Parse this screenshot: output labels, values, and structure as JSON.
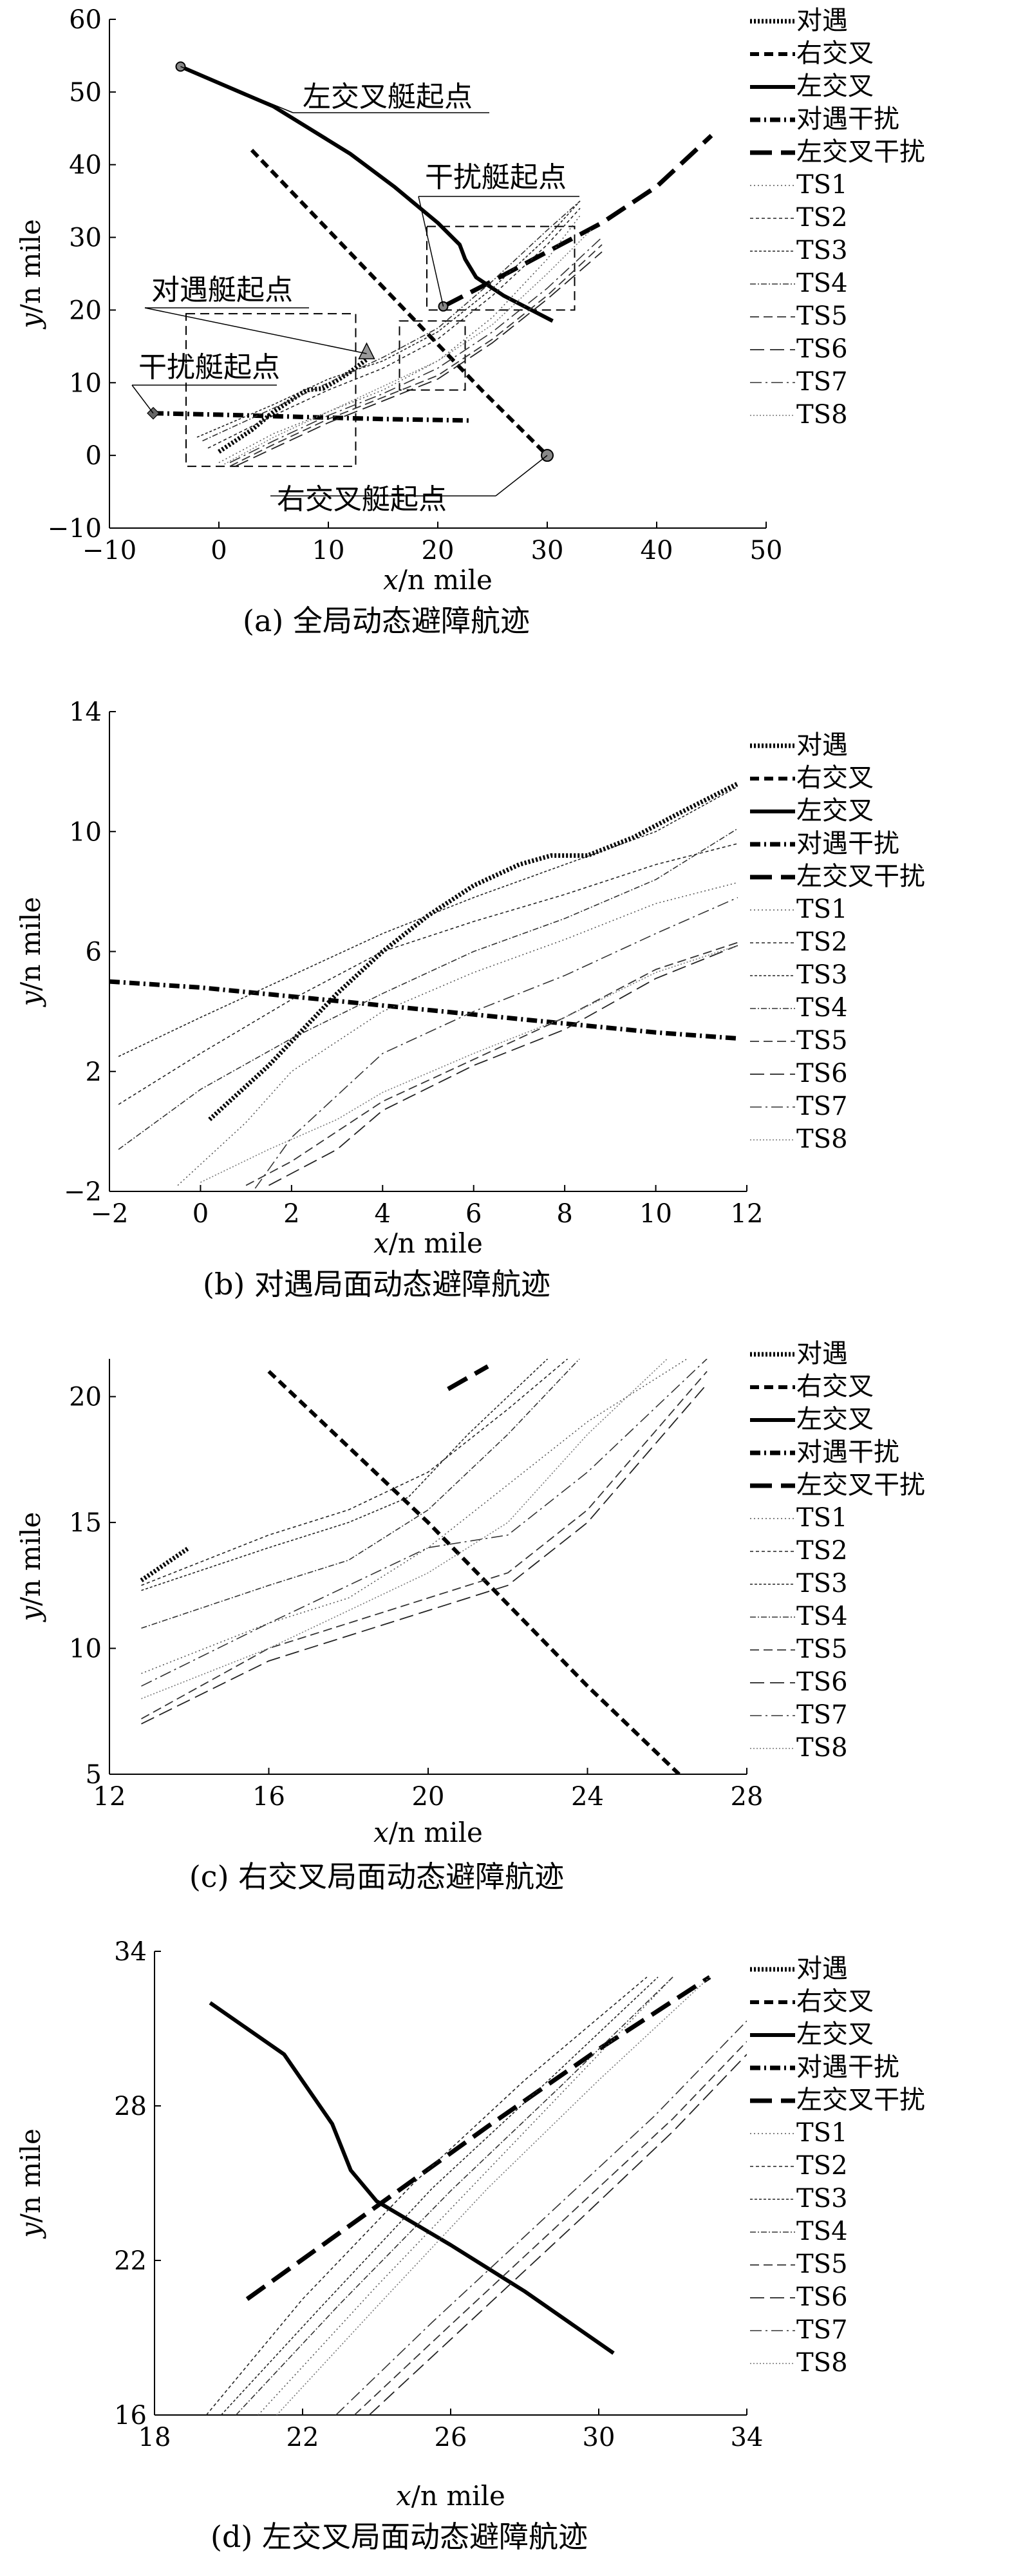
{
  "legend": [
    "对遇",
    "右交叉",
    "左交叉",
    "对遇干扰",
    "左交叉干扰",
    "TS1",
    "TS2",
    "TS3",
    "TS4",
    "TS5",
    "TS6",
    "TS7",
    "TS8"
  ],
  "chart_data": [
    {
      "type": "line",
      "title": "",
      "caption": "(a) 全局动态避障航迹",
      "xlabel_var": "x",
      "xlabel_unit": "/n mile",
      "ylabel_var": "y",
      "ylabel_unit": "/n mile",
      "xlim": [
        -10,
        50
      ],
      "ylim": [
        -10,
        60
      ],
      "xticks": [
        -10,
        0,
        10,
        20,
        30,
        40,
        50
      ],
      "yticks": [
        -10,
        0,
        10,
        20,
        30,
        40,
        50,
        60
      ],
      "series": [
        {
          "name": "对遇",
          "x": [
            0,
            3,
            5,
            7,
            8,
            9.5,
            11,
            12,
            13.5
          ],
          "y": [
            0.5,
            3.5,
            6,
            8,
            9,
            9.2,
            10.5,
            11.5,
            13.2
          ]
        },
        {
          "name": "右交叉",
          "x": [
            3,
            10,
            17,
            24,
            30
          ],
          "y": [
            42,
            31,
            20,
            9,
            0
          ]
        },
        {
          "name": "左交叉",
          "x": [
            -3.5,
            5,
            12,
            16,
            20,
            22,
            22.5,
            23.5,
            26,
            30.5
          ],
          "y": [
            53.5,
            48,
            41.5,
            37,
            32,
            29,
            27,
            24.5,
            22,
            18.5
          ]
        },
        {
          "name": "对遇干扰",
          "x": [
            -6,
            0,
            5,
            10,
            15,
            19,
            23
          ],
          "y": [
            5.8,
            5.6,
            5.4,
            5.2,
            5.0,
            4.9,
            4.8
          ]
        },
        {
          "name": "左交叉干扰",
          "x": [
            20.5,
            25,
            30,
            35,
            40,
            45
          ],
          "y": [
            20.5,
            24,
            28,
            32,
            37,
            44
          ]
        },
        {
          "name": "TS1",
          "x": [
            0,
            5,
            10,
            15,
            20,
            25,
            30,
            33
          ],
          "y": [
            -1,
            3,
            6,
            9,
            13,
            19,
            27,
            33
          ]
        },
        {
          "name": "TS2",
          "x": [
            -1,
            5,
            10,
            15,
            20,
            25,
            30,
            33
          ],
          "y": [
            1,
            5.5,
            9,
            12,
            16,
            22,
            29,
            34
          ]
        },
        {
          "name": "TS3",
          "x": [
            -2,
            5,
            10,
            15,
            20,
            25,
            30,
            33
          ],
          "y": [
            2.5,
            7,
            10.5,
            13,
            17,
            23,
            30,
            35
          ]
        },
        {
          "name": "TS4",
          "x": [
            -1.5,
            5,
            10,
            15,
            20,
            25,
            30,
            33
          ],
          "y": [
            2,
            6.5,
            10,
            13.5,
            17.5,
            24,
            31,
            35
          ]
        },
        {
          "name": "TS5",
          "x": [
            1,
            5,
            10,
            15,
            20,
            25,
            30,
            35
          ],
          "y": [
            -1.5,
            1.5,
            5,
            8,
            11,
            16,
            22,
            29
          ]
        },
        {
          "name": "TS6",
          "x": [
            1.5,
            5,
            10,
            15,
            20,
            25,
            30,
            35
          ],
          "y": [
            -1.5,
            1,
            4.5,
            7.5,
            10.5,
            15.5,
            21.5,
            28
          ]
        },
        {
          "name": "TS7",
          "x": [
            1,
            5,
            10,
            15,
            20,
            25,
            30,
            35
          ],
          "y": [
            -1,
            2,
            5.5,
            8.5,
            12,
            17,
            23,
            30
          ]
        },
        {
          "name": "TS8",
          "x": [
            0.5,
            5,
            10,
            15,
            20,
            25,
            30,
            34
          ],
          "y": [
            -1.2,
            2.5,
            6,
            9.5,
            13,
            18,
            25,
            31
          ]
        }
      ],
      "annotations": [
        {
          "text": "左交叉艇起点",
          "x": -3.5,
          "y": 53.5
        },
        {
          "text": "干扰艇起点",
          "x": 20.5,
          "y": 20.5
        },
        {
          "text": "对遇艇起点",
          "x": 13.5,
          "y": 14
        },
        {
          "text": "干扰艇起点",
          "x": -6,
          "y": 5.8
        },
        {
          "text": "右交叉艇起点",
          "x": 30,
          "y": 0
        }
      ],
      "regions": [
        {
          "x": [
            -3,
            12.5
          ],
          "y": [
            -1.5,
            19.5
          ]
        },
        {
          "x": [
            16.5,
            22.5
          ],
          "y": [
            9,
            18.5
          ]
        },
        {
          "x": [
            19,
            32.5
          ],
          "y": [
            20,
            31.5
          ]
        }
      ]
    },
    {
      "type": "line",
      "title": "",
      "caption": "(b) 对遇局面动态避障航迹",
      "xlabel_var": "x",
      "xlabel_unit": "/n mile",
      "ylabel_var": "y",
      "ylabel_unit": "/n mile",
      "xlim": [
        -2,
        12
      ],
      "ylim": [
        -2,
        14
      ],
      "xticks": [
        -2,
        0,
        2,
        4,
        6,
        8,
        10,
        12
      ],
      "yticks": [
        -2,
        2,
        6,
        10,
        14
      ],
      "series": [
        {
          "name": "对遇",
          "x": [
            0.2,
            1.5,
            3,
            4,
            5,
            6,
            7,
            7.7,
            8.5,
            9.5,
            10.5,
            11.8
          ],
          "y": [
            0.4,
            2.2,
            4.6,
            6.0,
            7.2,
            8.2,
            8.9,
            9.2,
            9.2,
            9.8,
            10.6,
            11.6
          ]
        },
        {
          "name": "对遇干扰",
          "x": [
            -2,
            0,
            2,
            4,
            6,
            8,
            10,
            11.8
          ],
          "y": [
            5.0,
            4.8,
            4.5,
            4.2,
            3.9,
            3.6,
            3.3,
            3.1
          ]
        },
        {
          "name": "TS1",
          "x": [
            -0.5,
            1,
            2,
            4,
            6,
            8,
            10,
            11.8
          ],
          "y": [
            -1.8,
            0.3,
            2.0,
            4.0,
            5.3,
            6.4,
            7.6,
            8.3
          ]
        },
        {
          "name": "TS2",
          "x": [
            -1.8,
            0,
            2,
            4,
            6,
            8,
            10,
            11.8
          ],
          "y": [
            0.9,
            2.6,
            4.4,
            6.0,
            7.0,
            7.9,
            8.9,
            9.6
          ]
        },
        {
          "name": "TS3",
          "x": [
            -1.8,
            0,
            2,
            4,
            6,
            8,
            10,
            11.8
          ],
          "y": [
            2.5,
            3.8,
            5.2,
            6.6,
            7.8,
            8.9,
            10.0,
            11.5
          ]
        },
        {
          "name": "TS4",
          "x": [
            -1.8,
            0,
            2,
            4,
            6,
            8,
            10,
            11.8
          ],
          "y": [
            -0.6,
            1.4,
            3.1,
            4.6,
            6.0,
            7.1,
            8.4,
            10.1
          ]
        },
        {
          "name": "TS5",
          "x": [
            1,
            2,
            4,
            6,
            8,
            10,
            11.8
          ],
          "y": [
            -1.8,
            -1.0,
            1.0,
            2.4,
            3.8,
            5.4,
            6.3
          ]
        },
        {
          "name": "TS6",
          "x": [
            1.5,
            3,
            4,
            6,
            8,
            10,
            11.8
          ],
          "y": [
            -1.8,
            -0.6,
            0.7,
            2.2,
            3.4,
            5.1,
            6.2
          ]
        },
        {
          "name": "TS7",
          "x": [
            1.2,
            2,
            4,
            6,
            8,
            10,
            11.8
          ],
          "y": [
            -1.9,
            -0.2,
            2.6,
            4.0,
            5.2,
            6.6,
            7.8
          ]
        },
        {
          "name": "TS8",
          "x": [
            0,
            1.5,
            3,
            4,
            6,
            8,
            10,
            11.8
          ],
          "y": [
            -1.7,
            -0.6,
            0.4,
            1.3,
            2.6,
            3.8,
            5.3,
            6.2
          ]
        }
      ]
    },
    {
      "type": "line",
      "title": "",
      "caption": "(c) 右交叉局面动态避障航迹",
      "xlabel_var": "x",
      "xlabel_unit": "/n mile",
      "ylabel_var": "y",
      "ylabel_unit": "/n mile",
      "xlim": [
        12,
        28
      ],
      "ylim": [
        5,
        21.5
      ],
      "xticks": [
        12,
        16,
        20,
        24,
        28
      ],
      "yticks": [
        5,
        10,
        15,
        20
      ],
      "series": [
        {
          "name": "对遇",
          "x": [
            12.8,
            14
          ],
          "y": [
            12.7,
            14
          ]
        },
        {
          "name": "右交叉",
          "x": [
            16,
            20,
            24,
            26.3
          ],
          "y": [
            21,
            15,
            8.5,
            5
          ]
        },
        {
          "name": "左交叉干扰",
          "x": [
            20.5,
            21.5
          ],
          "y": [
            20.3,
            21.2
          ]
        },
        {
          "name": "TS1",
          "x": [
            12.8,
            16,
            18,
            20,
            22,
            24,
            26.5
          ],
          "y": [
            9,
            11,
            12,
            14,
            16.5,
            19,
            21.5
          ]
        },
        {
          "name": "TS2",
          "x": [
            12.8,
            16,
            18,
            20,
            22,
            23.5
          ],
          "y": [
            12.5,
            14.5,
            15.5,
            17,
            19.5,
            21.5
          ]
        },
        {
          "name": "TS3",
          "x": [
            12.8,
            16,
            18,
            19.5,
            21,
            23
          ],
          "y": [
            12.3,
            14,
            15,
            16,
            18.5,
            21.5
          ]
        },
        {
          "name": "TS4",
          "x": [
            12.8,
            16,
            18,
            20,
            22,
            23.8
          ],
          "y": [
            10.8,
            12.5,
            13.5,
            15.5,
            18.5,
            21.5
          ]
        },
        {
          "name": "TS5",
          "x": [
            12.8,
            16,
            18,
            20,
            22,
            24,
            27
          ],
          "y": [
            7.2,
            10,
            11,
            12,
            13,
            15.5,
            21
          ]
        },
        {
          "name": "TS6",
          "x": [
            12.8,
            16,
            18,
            20,
            22,
            24,
            27
          ],
          "y": [
            7,
            9.5,
            10.5,
            11.5,
            12.5,
            15,
            20.5
          ]
        },
        {
          "name": "TS7",
          "x": [
            12.8,
            16,
            18,
            20,
            22,
            24,
            27
          ],
          "y": [
            8.5,
            11,
            12.5,
            14,
            14.5,
            17,
            21.5
          ]
        },
        {
          "name": "TS8",
          "x": [
            12.8,
            16,
            18,
            20,
            22,
            24,
            26
          ],
          "y": [
            8,
            10,
            11.5,
            13,
            15,
            18.5,
            21.5
          ]
        }
      ]
    },
    {
      "type": "line",
      "title": "",
      "caption": "(d) 左交叉局面动态避障航迹",
      "xlabel_var": "x",
      "xlabel_unit": "/n mile",
      "ylabel_var": "y",
      "ylabel_unit": "/n mile",
      "xlim": [
        18,
        34
      ],
      "ylim": [
        16,
        34
      ],
      "xticks": [
        18,
        22,
        26,
        30,
        34
      ],
      "yticks": [
        16,
        22,
        28,
        34
      ],
      "series": [
        {
          "name": "左交叉",
          "x": [
            19.5,
            21.5,
            22.8,
            23.3,
            24,
            26,
            28,
            30.4
          ],
          "y": [
            32,
            30,
            27.3,
            25.5,
            24.3,
            22.6,
            20.8,
            18.4
          ]
        },
        {
          "name": "左交叉干扰",
          "x": [
            20.5,
            24,
            27,
            30,
            33
          ],
          "y": [
            20.5,
            24.1,
            27.2,
            30.2,
            33
          ]
        },
        {
          "name": "TS1",
          "x": [
            20.8,
            24,
            27,
            30,
            32
          ],
          "y": [
            16,
            21,
            25.5,
            30,
            33
          ]
        },
        {
          "name": "TS2",
          "x": [
            19.4,
            22,
            25,
            28,
            31.3
          ],
          "y": [
            16,
            20.5,
            25,
            29,
            33
          ]
        },
        {
          "name": "TS3",
          "x": [
            19.8,
            22.5,
            25.5,
            28.5,
            31.6
          ],
          "y": [
            16,
            20.2,
            24.8,
            28.8,
            33
          ]
        },
        {
          "name": "TS4",
          "x": [
            20.2,
            23,
            26,
            29,
            32
          ],
          "y": [
            16,
            20.3,
            24.7,
            28.8,
            33
          ]
        },
        {
          "name": "TS5",
          "x": [
            23.4,
            26,
            29,
            32,
            34
          ],
          "y": [
            16,
            19.5,
            23.5,
            27.5,
            30.5
          ]
        },
        {
          "name": "TS6",
          "x": [
            23.8,
            26.5,
            29.5,
            32,
            34
          ],
          "y": [
            16,
            19.6,
            23.6,
            27,
            30
          ]
        },
        {
          "name": "TS7",
          "x": [
            22.9,
            25.5,
            28.5,
            31.5,
            34
          ],
          "y": [
            16,
            19.6,
            23.6,
            27.6,
            31.3
          ]
        },
        {
          "name": "TS8",
          "x": [
            21.3,
            24,
            27,
            30,
            33
          ],
          "y": [
            16,
            20.2,
            24.8,
            29,
            33
          ]
        }
      ]
    }
  ]
}
